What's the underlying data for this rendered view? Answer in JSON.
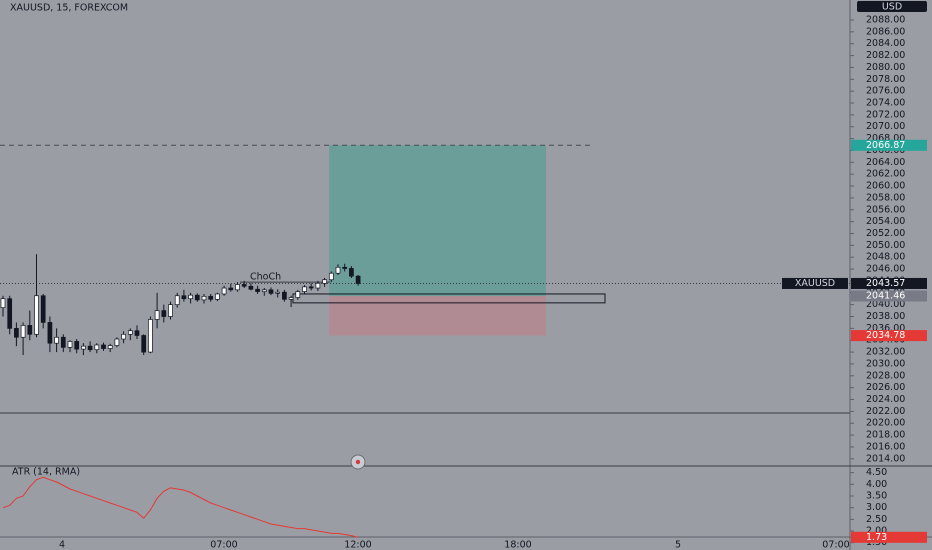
{
  "symbol": "XAUUSD, 15, FOREXCOM",
  "currency": "USD",
  "annotation": "ChoCh",
  "instrument_tag": "XAUUSD",
  "price_axis": {
    "ylim": [
      2013,
      2090
    ],
    "yticks": [
      {
        "value": 2014,
        "label": "2014.00"
      },
      {
        "value": 2016,
        "label": "2016.00"
      },
      {
        "value": 2018,
        "label": "2018.00"
      },
      {
        "value": 2020,
        "label": "2020.00"
      },
      {
        "value": 2022,
        "label": "2022.00"
      },
      {
        "value": 2024,
        "label": "2024.00"
      },
      {
        "value": 2026,
        "label": "2026.00"
      },
      {
        "value": 2028,
        "label": "2028.00"
      },
      {
        "value": 2030,
        "label": "2030.00"
      },
      {
        "value": 2032,
        "label": "2032.00"
      },
      {
        "value": 2034,
        "label": "2034.00"
      },
      {
        "value": 2036,
        "label": "2036.00"
      },
      {
        "value": 2038,
        "label": "2038.00"
      },
      {
        "value": 2040,
        "label": "2040.00"
      },
      {
        "value": 2042,
        "label": "2042.00"
      },
      {
        "value": 2044,
        "label": "2044.00"
      },
      {
        "value": 2046,
        "label": "2046.00"
      },
      {
        "value": 2048,
        "label": "2048.00"
      },
      {
        "value": 2050,
        "label": "2050.00"
      },
      {
        "value": 2052,
        "label": "2052.00"
      },
      {
        "value": 2054,
        "label": "2054.00"
      },
      {
        "value": 2056,
        "label": "2056.00"
      },
      {
        "value": 2058,
        "label": "2058.00"
      },
      {
        "value": 2060,
        "label": "2060.00"
      },
      {
        "value": 2062,
        "label": "2062.00"
      },
      {
        "value": 2064,
        "label": "2064.00"
      },
      {
        "value": 2066,
        "label": "2066.00"
      },
      {
        "value": 2068,
        "label": "2068.00"
      },
      {
        "value": 2070,
        "label": "2070.00"
      },
      {
        "value": 2072,
        "label": "2072.00"
      },
      {
        "value": 2074,
        "label": "2074.00"
      },
      {
        "value": 2076,
        "label": "2076.00"
      },
      {
        "value": 2078,
        "label": "2078.00"
      },
      {
        "value": 2080,
        "label": "2080.00"
      },
      {
        "value": 2082,
        "label": "2082.00"
      },
      {
        "value": 2084,
        "label": "2084.00"
      },
      {
        "value": 2086,
        "label": "2086.00"
      },
      {
        "value": 2088,
        "label": "2088.00"
      }
    ]
  },
  "time_labels": [
    "4",
    "07:00",
    "12:00",
    "18:00",
    "5",
    "07:00"
  ],
  "candles": [
    [
      2039.5,
      2041.5,
      2038,
      2041
    ],
    [
      2041,
      2041.5,
      2035,
      2036
    ],
    [
      2036,
      2037,
      2033,
      2034.5
    ],
    [
      2034.5,
      2037,
      2031.5,
      2036.5
    ],
    [
      2036.5,
      2039,
      2034,
      2035
    ],
    [
      2035,
      2048.5,
      2034.5,
      2041.5
    ],
    [
      2041.5,
      2041.8,
      2036,
      2037
    ],
    [
      2037,
      2038,
      2032,
      2033.5
    ],
    [
      2033.5,
      2036,
      2032,
      2034.5
    ],
    [
      2034.5,
      2035,
      2032,
      2032.8
    ],
    [
      2032.8,
      2034,
      2032,
      2033.8
    ],
    [
      2033.8,
      2034.2,
      2031.8,
      2032.5
    ],
    [
      2032.5,
      2033.5,
      2031.5,
      2033
    ],
    [
      2033,
      2033.8,
      2032,
      2032.4
    ],
    [
      2032.4,
      2033.5,
      2031.8,
      2033.2
    ],
    [
      2033.2,
      2033.6,
      2032.2,
      2032.6
    ],
    [
      2032.6,
      2033.4,
      2032,
      2033.1
    ],
    [
      2033.1,
      2034.5,
      2032.8,
      2034.2
    ],
    [
      2034.2,
      2035.5,
      2033.5,
      2035
    ],
    [
      2035,
      2036,
      2034,
      2035.6
    ],
    [
      2035.6,
      2036.5,
      2034.2,
      2034.8
    ],
    [
      2034.8,
      2035,
      2031.5,
      2032
    ],
    [
      2032,
      2038,
      2031.8,
      2037.5
    ],
    [
      2037.5,
      2042,
      2036,
      2039
    ],
    [
      2039,
      2040,
      2037,
      2038
    ],
    [
      2038,
      2040.5,
      2037.5,
      2040
    ],
    [
      2040,
      2042,
      2039.5,
      2041.5
    ],
    [
      2041.5,
      2042.5,
      2040.5,
      2041
    ],
    [
      2041,
      2042,
      2040.2,
      2041.6
    ],
    [
      2041.6,
      2041.9,
      2040.5,
      2040.8
    ],
    [
      2040.8,
      2041.8,
      2040.2,
      2041.4
    ],
    [
      2041.4,
      2041.8,
      2040.5,
      2040.9
    ],
    [
      2040.9,
      2042,
      2040.6,
      2041.8
    ],
    [
      2041.8,
      2043.2,
      2041.5,
      2042.8
    ],
    [
      2042.8,
      2043.5,
      2042.2,
      2042.5
    ],
    [
      2042.5,
      2043.8,
      2042.2,
      2043.4
    ],
    [
      2043.4,
      2044,
      2042.8,
      2043.1
    ],
    [
      2043.1,
      2043.6,
      2042.4,
      2042.6
    ],
    [
      2042.6,
      2043.2,
      2041.8,
      2042.2
    ],
    [
      2042.2,
      2042.8,
      2041.5,
      2042.5
    ],
    [
      2042.5,
      2042.9,
      2041.6,
      2041.9
    ],
    [
      2041.9,
      2042.6,
      2041.2,
      2042.1
    ],
    [
      2042.1,
      2042.5,
      2040.5,
      2040.9
    ],
    [
      2040.9,
      2041.5,
      2039.6,
      2041.2
    ],
    [
      2041.2,
      2042.5,
      2040.8,
      2042.2
    ],
    [
      2042.2,
      2043.3,
      2041.8,
      2043
    ],
    [
      2043,
      2043.6,
      2042.4,
      2042.8
    ],
    [
      2042.8,
      2044,
      2042.3,
      2043.6
    ],
    [
      2043.6,
      2044.5,
      2043,
      2044.2
    ],
    [
      2044.2,
      2045.6,
      2043.8,
      2045.3
    ],
    [
      2045.3,
      2046.8,
      2045,
      2046.3
    ],
    [
      2046.3,
      2046.9,
      2045.6,
      2046.1
    ],
    [
      2046.1,
      2046.5,
      2044.5,
      2044.8
    ],
    [
      2044.8,
      2045,
      2043.2,
      2043.57
    ]
  ],
  "position": {
    "target": 2066.87,
    "entry": 2041.46,
    "stop": 2034.78,
    "current": 2043.57
  },
  "choch_zone": {
    "top": 2041.8,
    "bottom": 2040.3
  },
  "atr": {
    "title": "ATR (14, RMA)",
    "ylim": [
      1.4,
      4.7
    ],
    "yticks": [
      {
        "value": 1.5,
        "label": "1.50"
      },
      {
        "value": 2,
        "label": "2.00"
      },
      {
        "value": 2.5,
        "label": "2.50"
      },
      {
        "value": 3,
        "label": "3.00"
      },
      {
        "value": 3.5,
        "label": "3.50"
      },
      {
        "value": 4,
        "label": "4.00"
      },
      {
        "value": 4.5,
        "label": "4.50"
      }
    ],
    "color": "#e53935",
    "last": 1.73,
    "values": [
      3.0,
      3.1,
      3.4,
      3.5,
      3.9,
      4.2,
      4.3,
      4.2,
      4.1,
      3.95,
      3.8,
      3.7,
      3.6,
      3.5,
      3.4,
      3.3,
      3.2,
      3.1,
      3.0,
      2.9,
      2.8,
      2.55,
      2.9,
      3.4,
      3.7,
      3.85,
      3.8,
      3.75,
      3.65,
      3.5,
      3.35,
      3.2,
      3.1,
      3.0,
      2.9,
      2.8,
      2.7,
      2.6,
      2.5,
      2.4,
      2.3,
      2.25,
      2.2,
      2.15,
      2.1,
      2.1,
      2.05,
      2.0,
      1.95,
      1.9,
      1.9,
      1.85,
      1.8,
      1.73
    ]
  }
}
